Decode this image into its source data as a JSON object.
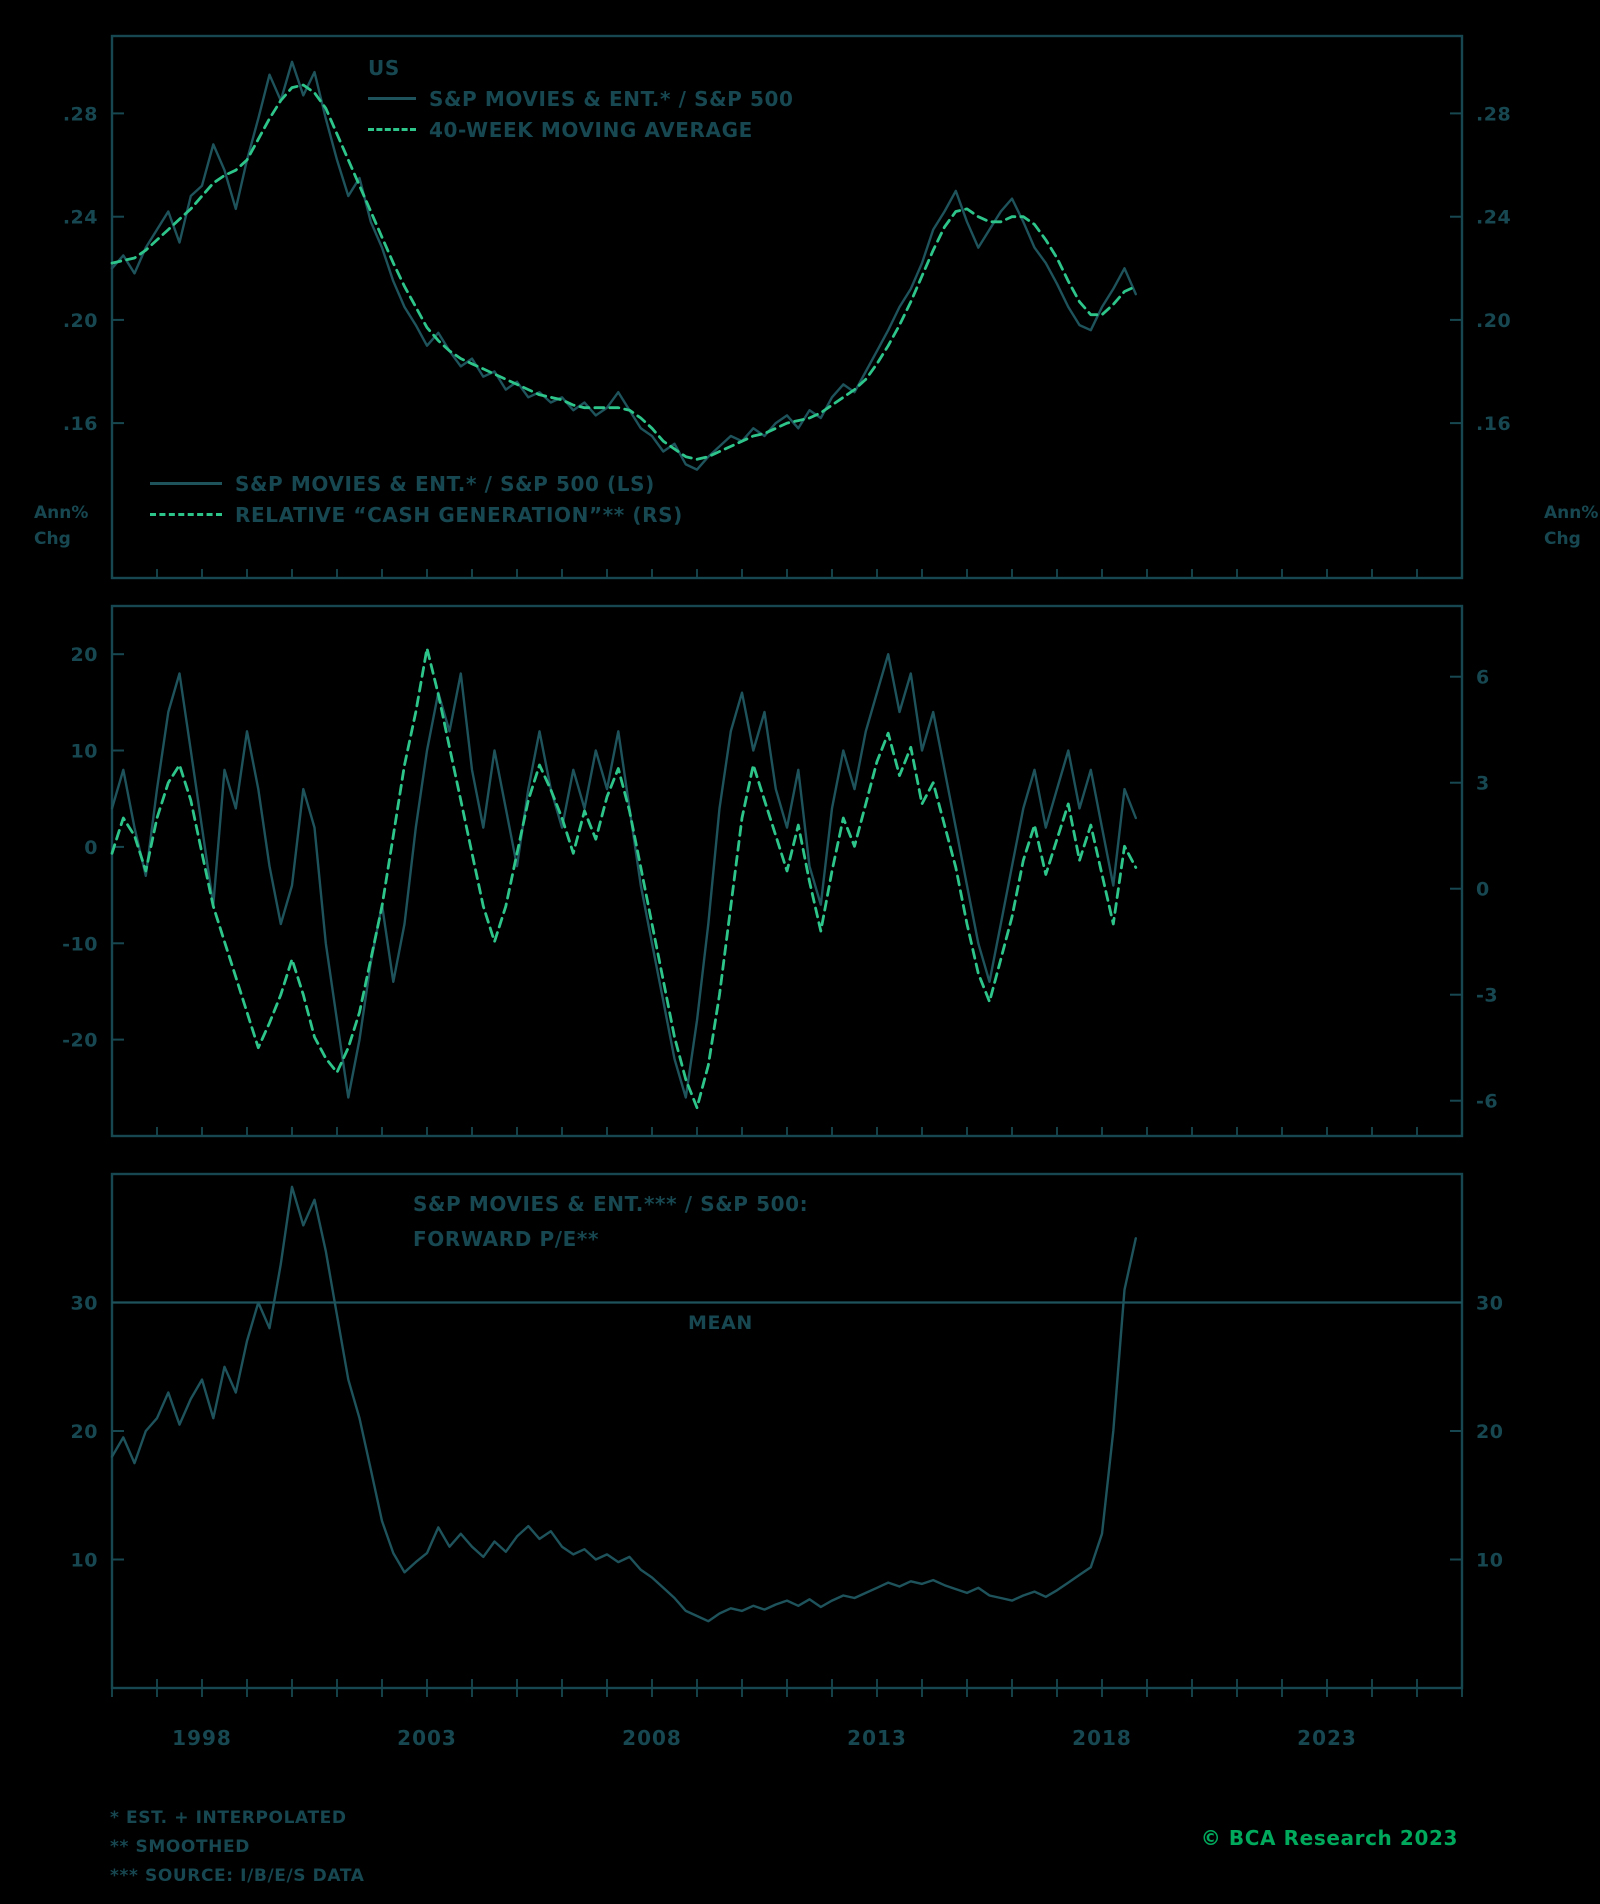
{
  "canvas": {
    "bg": "#000000"
  },
  "colors": {
    "frame": "#174851",
    "text": "#174851",
    "dark_series": "#1e535c",
    "green_series": "#2ec58b",
    "copyright_green": "#00a95c"
  },
  "panel1": {
    "legend": {
      "region": "US",
      "series1": "S&P MOVIES & ENT.* / S&P 500",
      "series2": "40-WEEK MOVING AVERAGE"
    }
  },
  "panel2": {
    "legend": {
      "series1": "S&P MOVIES & ENT.* / S&P 500 (LS)",
      "series2": "RELATIVE “CASH GENERATION”** (RS)"
    }
  },
  "panel3": {
    "title_line1": "S&P MOVIES & ENT.*** / S&P 500:",
    "title_line2": "FORWARD P/E**",
    "mean_label": "MEAN"
  },
  "footnotes": [
    "*  EST. + INTERPOLATED",
    "**  SMOOTHED",
    "***  SOURCE: I/B/E/S DATA"
  ],
  "copyright": "© BCA Research 2023",
  "chart_data": [
    {
      "type": "line",
      "panel": "top",
      "title": "US",
      "legend_position": "top-center-left",
      "grid": false,
      "x_range": [
        1996,
        2026
      ],
      "x_start": 1996,
      "x_step": 0.25,
      "left_axis": {
        "range": [
          0.1,
          0.31
        ],
        "ticks": [
          {
            "value": 0.28,
            "label": ".28"
          },
          {
            "value": 0.24,
            "label": ".24"
          },
          {
            "value": 0.2,
            "label": ".20"
          },
          {
            "value": 0.16,
            "label": ".16"
          }
        ]
      },
      "right_axis": {
        "range": [
          0.1,
          0.31
        ],
        "ticks": [
          {
            "value": 0.28,
            "label": ".28"
          },
          {
            "value": 0.24,
            "label": ".24"
          },
          {
            "value": 0.2,
            "label": ".20"
          },
          {
            "value": 0.16,
            "label": ".16"
          }
        ]
      },
      "series": [
        {
          "name": "sp-movies-ent-rel-sp500",
          "label": "S&P MOVIES & ENT.* / S&P 500",
          "color": "dark",
          "dashed": false,
          "axis": "left",
          "values": [
            0.22,
            0.225,
            0.218,
            0.228,
            0.235,
            0.242,
            0.23,
            0.248,
            0.252,
            0.268,
            0.258,
            0.243,
            0.262,
            0.278,
            0.295,
            0.285,
            0.3,
            0.287,
            0.296,
            0.278,
            0.262,
            0.248,
            0.255,
            0.238,
            0.228,
            0.215,
            0.205,
            0.198,
            0.19,
            0.195,
            0.188,
            0.182,
            0.185,
            0.178,
            0.18,
            0.173,
            0.176,
            0.17,
            0.172,
            0.168,
            0.17,
            0.165,
            0.168,
            0.163,
            0.166,
            0.172,
            0.165,
            0.158,
            0.155,
            0.149,
            0.152,
            0.144,
            0.142,
            0.147,
            0.151,
            0.155,
            0.153,
            0.158,
            0.155,
            0.16,
            0.163,
            0.158,
            0.165,
            0.162,
            0.17,
            0.175,
            0.172,
            0.18,
            0.188,
            0.196,
            0.205,
            0.212,
            0.222,
            0.235,
            0.242,
            0.25,
            0.238,
            0.228,
            0.235,
            0.242,
            0.247,
            0.238,
            0.228,
            0.222,
            0.214,
            0.205,
            0.198,
            0.196,
            0.205,
            0.212,
            0.22,
            0.21
          ]
        },
        {
          "name": "40-week-moving-average",
          "label": "40-WEEK MOVING AVERAGE",
          "color": "green",
          "dashed": true,
          "axis": "left",
          "values": [
            0.222,
            0.223,
            0.224,
            0.227,
            0.231,
            0.235,
            0.239,
            0.243,
            0.248,
            0.253,
            0.256,
            0.258,
            0.262,
            0.27,
            0.278,
            0.285,
            0.29,
            0.291,
            0.288,
            0.282,
            0.272,
            0.262,
            0.252,
            0.242,
            0.232,
            0.222,
            0.213,
            0.205,
            0.197,
            0.192,
            0.188,
            0.185,
            0.183,
            0.181,
            0.179,
            0.177,
            0.175,
            0.173,
            0.171,
            0.17,
            0.169,
            0.167,
            0.166,
            0.166,
            0.166,
            0.166,
            0.165,
            0.162,
            0.158,
            0.153,
            0.15,
            0.147,
            0.146,
            0.147,
            0.149,
            0.151,
            0.153,
            0.155,
            0.156,
            0.158,
            0.16,
            0.161,
            0.162,
            0.164,
            0.167,
            0.17,
            0.173,
            0.177,
            0.183,
            0.19,
            0.198,
            0.207,
            0.217,
            0.227,
            0.236,
            0.242,
            0.243,
            0.24,
            0.238,
            0.238,
            0.24,
            0.24,
            0.237,
            0.231,
            0.224,
            0.215,
            0.207,
            0.202,
            0.202,
            0.206,
            0.211,
            0.213
          ]
        }
      ]
    },
    {
      "type": "line",
      "panel": "middle",
      "grid": false,
      "x_range": [
        1996,
        2026
      ],
      "x_start": 1996,
      "x_step": 0.25,
      "units": {
        "left": [
          "Ann%",
          "Chg"
        ],
        "right": [
          "Ann%",
          "Chg"
        ]
      },
      "left_axis": {
        "range": [
          -30,
          25
        ],
        "ticks": [
          {
            "value": 20,
            "label": "20"
          },
          {
            "value": 10,
            "label": "10"
          },
          {
            "value": 0,
            "label": "0"
          },
          {
            "value": -10,
            "label": "-10"
          },
          {
            "value": -20,
            "label": "-20"
          }
        ]
      },
      "right_axis": {
        "range": [
          -7,
          8
        ],
        "ticks": [
          {
            "value": 6,
            "label": "6"
          },
          {
            "value": 3,
            "label": "3"
          },
          {
            "value": 0,
            "label": "0"
          },
          {
            "value": -3,
            "label": "-3"
          },
          {
            "value": -6,
            "label": "-6"
          }
        ]
      },
      "series": [
        {
          "name": "sp-movies-ent-rel-sp500-yoy",
          "label": "S&P MOVIES & ENT.* / S&P 500 (LS)",
          "color": "dark",
          "dashed": false,
          "axis": "left",
          "values": [
            4,
            8,
            2,
            -3,
            6,
            14,
            18,
            10,
            2,
            -6,
            8,
            4,
            12,
            6,
            -2,
            -8,
            -4,
            6,
            2,
            -10,
            -18,
            -26,
            -20,
            -12,
            -6,
            -14,
            -8,
            2,
            10,
            16,
            12,
            18,
            8,
            2,
            10,
            4,
            -2,
            6,
            12,
            6,
            2,
            8,
            4,
            10,
            6,
            12,
            4,
            -4,
            -10,
            -16,
            -22,
            -26,
            -18,
            -8,
            4,
            12,
            16,
            10,
            14,
            6,
            2,
            8,
            -2,
            -6,
            4,
            10,
            6,
            12,
            16,
            20,
            14,
            18,
            10,
            14,
            8,
            2,
            -4,
            -10,
            -14,
            -8,
            -2,
            4,
            8,
            2,
            6,
            10,
            4,
            8,
            2,
            -4,
            6,
            3
          ]
        },
        {
          "name": "relative-cash-generation",
          "label": "RELATIVE “CASH GENERATION”** (RS)",
          "color": "green",
          "dashed": true,
          "axis": "right",
          "values": [
            1,
            2,
            1.5,
            0.5,
            2,
            3,
            3.5,
            2.5,
            1,
            -0.5,
            -1.5,
            -2.5,
            -3.5,
            -4.5,
            -3.8,
            -3,
            -2,
            -3,
            -4.2,
            -4.8,
            -5.2,
            -4.5,
            -3.5,
            -2,
            -0.5,
            1.5,
            3.5,
            5,
            6.8,
            5.5,
            4,
            2.5,
            1,
            -0.5,
            -1.5,
            -0.5,
            1,
            2.5,
            3.5,
            2.8,
            2,
            1,
            2.2,
            1.4,
            2.6,
            3.4,
            2.2,
            0.6,
            -1,
            -2.6,
            -4.2,
            -5.4,
            -6.2,
            -5,
            -3,
            -0.5,
            2,
            3.5,
            2.5,
            1.5,
            0.5,
            1.8,
            0.2,
            -1.2,
            0.5,
            2,
            1.2,
            2.4,
            3.6,
            4.4,
            3.2,
            4,
            2.4,
            3,
            1.8,
            0.6,
            -1,
            -2.4,
            -3.2,
            -2,
            -0.8,
            0.8,
            1.8,
            0.4,
            1.4,
            2.4,
            0.8,
            1.8,
            0.4,
            -1,
            1.2,
            0.6
          ]
        }
      ]
    },
    {
      "type": "line",
      "panel": "bottom",
      "grid": false,
      "x_range": [
        1996,
        2026
      ],
      "x_start": 1996,
      "x_step": 0.25,
      "x_tick_labels": [
        1998,
        2003,
        2008,
        2013,
        2018,
        2023
      ],
      "mean": {
        "value": 30,
        "label": "MEAN"
      },
      "left_axis": {
        "range": [
          0,
          40
        ],
        "ticks": [
          {
            "value": 30,
            "label": "30"
          },
          {
            "value": 20,
            "label": "20"
          },
          {
            "value": 10,
            "label": "10"
          }
        ]
      },
      "right_axis": {
        "range": [
          0,
          40
        ],
        "ticks": [
          {
            "value": 30,
            "label": "30"
          },
          {
            "value": 20,
            "label": "20"
          },
          {
            "value": 10,
            "label": "10"
          }
        ]
      },
      "series": [
        {
          "name": "forward-pe",
          "label": "S&P MOVIES & ENT.*** / S&P 500: FORWARD P/E**",
          "color": "dark",
          "dashed": false,
          "axis": "left",
          "values": [
            18,
            19.5,
            17.5,
            20,
            21,
            23,
            20.5,
            22.5,
            24,
            21,
            25,
            23,
            27,
            30,
            28,
            33,
            39,
            36,
            38,
            34,
            29,
            24,
            21,
            17,
            13,
            10.5,
            9,
            9.8,
            10.5,
            12.5,
            11,
            12,
            11,
            10.2,
            11.4,
            10.6,
            11.8,
            12.6,
            11.6,
            12.2,
            11,
            10.4,
            10.8,
            10,
            10.4,
            9.8,
            10.2,
            9.2,
            8.6,
            7.8,
            7,
            6,
            5.6,
            5.2,
            5.8,
            6.2,
            6,
            6.4,
            6.1,
            6.5,
            6.8,
            6.4,
            6.9,
            6.3,
            6.8,
            7.2,
            7,
            7.4,
            7.8,
            8.2,
            7.9,
            8.3,
            8.1,
            8.4,
            8,
            7.7,
            7.4,
            7.8,
            7.2,
            7,
            6.8,
            7.2,
            7.5,
            7.1,
            7.6,
            8.2,
            8.8,
            9.4,
            12,
            20,
            31,
            35
          ]
        }
      ]
    }
  ]
}
